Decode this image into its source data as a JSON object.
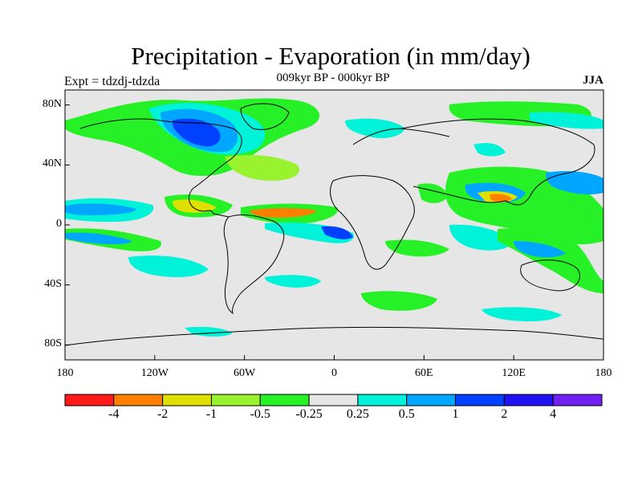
{
  "title": "Precipitation - Evaporation (in mm/day)",
  "subtitle": "009kyr BP - 000kyr BP",
  "experiment": "Expt = tdzdj-tdzda",
  "season": "JJA",
  "axes": {
    "y_ticks": [
      {
        "lat": 80,
        "label": "80N"
      },
      {
        "lat": 40,
        "label": "40N"
      },
      {
        "lat": 0,
        "label": "0"
      },
      {
        "lat": -40,
        "label": "40S"
      },
      {
        "lat": -80,
        "label": "80S"
      }
    ],
    "x_ticks": [
      {
        "lon": -180,
        "label": "180"
      },
      {
        "lon": -120,
        "label": "120W"
      },
      {
        "lon": -60,
        "label": "60W"
      },
      {
        "lon": 0,
        "label": "0"
      },
      {
        "lon": 60,
        "label": "60E"
      },
      {
        "lon": 120,
        "label": "120E"
      },
      {
        "lon": 180,
        "label": "180"
      }
    ]
  },
  "colorbar": {
    "colors": [
      "#ff1a1a",
      "#ff8000",
      "#e0e000",
      "#99f22e",
      "#26f026",
      "#e6e6e6",
      "#00f2d9",
      "#00a6ff",
      "#0040ff",
      "#2010f2",
      "#7020f0"
    ],
    "labels": [
      "-4",
      "-2",
      "-1",
      "-0.5",
      "-0.25",
      "0.25",
      "0.5",
      "1",
      "2",
      "4"
    ]
  },
  "background_color": "#e6e6e6"
}
